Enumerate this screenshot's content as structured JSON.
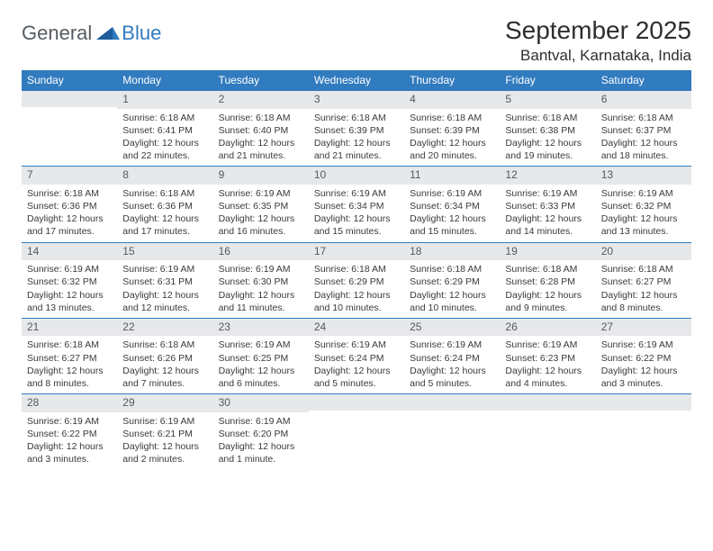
{
  "brand": {
    "word1": "General",
    "word2": "Blue"
  },
  "header": {
    "month": "September 2025",
    "location": "Bantval, Karnataka, India"
  },
  "colors": {
    "accent": "#317bbf",
    "header_text": "#ffffff",
    "daynum_bg": "#e7e8ea",
    "daynum_text": "#55595e",
    "body_text": "#3a3a3a",
    "page_bg": "#ffffff"
  },
  "weekdays": [
    "Sunday",
    "Monday",
    "Tuesday",
    "Wednesday",
    "Thursday",
    "Friday",
    "Saturday"
  ],
  "weeks": [
    [
      {
        "empty": true
      },
      {
        "num": "1",
        "sunrise": "Sunrise: 6:18 AM",
        "sunset": "Sunset: 6:41 PM",
        "daylight": "Daylight: 12 hours and 22 minutes."
      },
      {
        "num": "2",
        "sunrise": "Sunrise: 6:18 AM",
        "sunset": "Sunset: 6:40 PM",
        "daylight": "Daylight: 12 hours and 21 minutes."
      },
      {
        "num": "3",
        "sunrise": "Sunrise: 6:18 AM",
        "sunset": "Sunset: 6:39 PM",
        "daylight": "Daylight: 12 hours and 21 minutes."
      },
      {
        "num": "4",
        "sunrise": "Sunrise: 6:18 AM",
        "sunset": "Sunset: 6:39 PM",
        "daylight": "Daylight: 12 hours and 20 minutes."
      },
      {
        "num": "5",
        "sunrise": "Sunrise: 6:18 AM",
        "sunset": "Sunset: 6:38 PM",
        "daylight": "Daylight: 12 hours and 19 minutes."
      },
      {
        "num": "6",
        "sunrise": "Sunrise: 6:18 AM",
        "sunset": "Sunset: 6:37 PM",
        "daylight": "Daylight: 12 hours and 18 minutes."
      }
    ],
    [
      {
        "num": "7",
        "sunrise": "Sunrise: 6:18 AM",
        "sunset": "Sunset: 6:36 PM",
        "daylight": "Daylight: 12 hours and 17 minutes."
      },
      {
        "num": "8",
        "sunrise": "Sunrise: 6:18 AM",
        "sunset": "Sunset: 6:36 PM",
        "daylight": "Daylight: 12 hours and 17 minutes."
      },
      {
        "num": "9",
        "sunrise": "Sunrise: 6:19 AM",
        "sunset": "Sunset: 6:35 PM",
        "daylight": "Daylight: 12 hours and 16 minutes."
      },
      {
        "num": "10",
        "sunrise": "Sunrise: 6:19 AM",
        "sunset": "Sunset: 6:34 PM",
        "daylight": "Daylight: 12 hours and 15 minutes."
      },
      {
        "num": "11",
        "sunrise": "Sunrise: 6:19 AM",
        "sunset": "Sunset: 6:34 PM",
        "daylight": "Daylight: 12 hours and 15 minutes."
      },
      {
        "num": "12",
        "sunrise": "Sunrise: 6:19 AM",
        "sunset": "Sunset: 6:33 PM",
        "daylight": "Daylight: 12 hours and 14 minutes."
      },
      {
        "num": "13",
        "sunrise": "Sunrise: 6:19 AM",
        "sunset": "Sunset: 6:32 PM",
        "daylight": "Daylight: 12 hours and 13 minutes."
      }
    ],
    [
      {
        "num": "14",
        "sunrise": "Sunrise: 6:19 AM",
        "sunset": "Sunset: 6:32 PM",
        "daylight": "Daylight: 12 hours and 13 minutes."
      },
      {
        "num": "15",
        "sunrise": "Sunrise: 6:19 AM",
        "sunset": "Sunset: 6:31 PM",
        "daylight": "Daylight: 12 hours and 12 minutes."
      },
      {
        "num": "16",
        "sunrise": "Sunrise: 6:19 AM",
        "sunset": "Sunset: 6:30 PM",
        "daylight": "Daylight: 12 hours and 11 minutes."
      },
      {
        "num": "17",
        "sunrise": "Sunrise: 6:18 AM",
        "sunset": "Sunset: 6:29 PM",
        "daylight": "Daylight: 12 hours and 10 minutes."
      },
      {
        "num": "18",
        "sunrise": "Sunrise: 6:18 AM",
        "sunset": "Sunset: 6:29 PM",
        "daylight": "Daylight: 12 hours and 10 minutes."
      },
      {
        "num": "19",
        "sunrise": "Sunrise: 6:18 AM",
        "sunset": "Sunset: 6:28 PM",
        "daylight": "Daylight: 12 hours and 9 minutes."
      },
      {
        "num": "20",
        "sunrise": "Sunrise: 6:18 AM",
        "sunset": "Sunset: 6:27 PM",
        "daylight": "Daylight: 12 hours and 8 minutes."
      }
    ],
    [
      {
        "num": "21",
        "sunrise": "Sunrise: 6:18 AM",
        "sunset": "Sunset: 6:27 PM",
        "daylight": "Daylight: 12 hours and 8 minutes."
      },
      {
        "num": "22",
        "sunrise": "Sunrise: 6:18 AM",
        "sunset": "Sunset: 6:26 PM",
        "daylight": "Daylight: 12 hours and 7 minutes."
      },
      {
        "num": "23",
        "sunrise": "Sunrise: 6:19 AM",
        "sunset": "Sunset: 6:25 PM",
        "daylight": "Daylight: 12 hours and 6 minutes."
      },
      {
        "num": "24",
        "sunrise": "Sunrise: 6:19 AM",
        "sunset": "Sunset: 6:24 PM",
        "daylight": "Daylight: 12 hours and 5 minutes."
      },
      {
        "num": "25",
        "sunrise": "Sunrise: 6:19 AM",
        "sunset": "Sunset: 6:24 PM",
        "daylight": "Daylight: 12 hours and 5 minutes."
      },
      {
        "num": "26",
        "sunrise": "Sunrise: 6:19 AM",
        "sunset": "Sunset: 6:23 PM",
        "daylight": "Daylight: 12 hours and 4 minutes."
      },
      {
        "num": "27",
        "sunrise": "Sunrise: 6:19 AM",
        "sunset": "Sunset: 6:22 PM",
        "daylight": "Daylight: 12 hours and 3 minutes."
      }
    ],
    [
      {
        "num": "28",
        "sunrise": "Sunrise: 6:19 AM",
        "sunset": "Sunset: 6:22 PM",
        "daylight": "Daylight: 12 hours and 3 minutes."
      },
      {
        "num": "29",
        "sunrise": "Sunrise: 6:19 AM",
        "sunset": "Sunset: 6:21 PM",
        "daylight": "Daylight: 12 hours and 2 minutes."
      },
      {
        "num": "30",
        "sunrise": "Sunrise: 6:19 AM",
        "sunset": "Sunset: 6:20 PM",
        "daylight": "Daylight: 12 hours and 1 minute."
      },
      {
        "empty": true
      },
      {
        "empty": true
      },
      {
        "empty": true
      },
      {
        "empty": true
      }
    ]
  ]
}
